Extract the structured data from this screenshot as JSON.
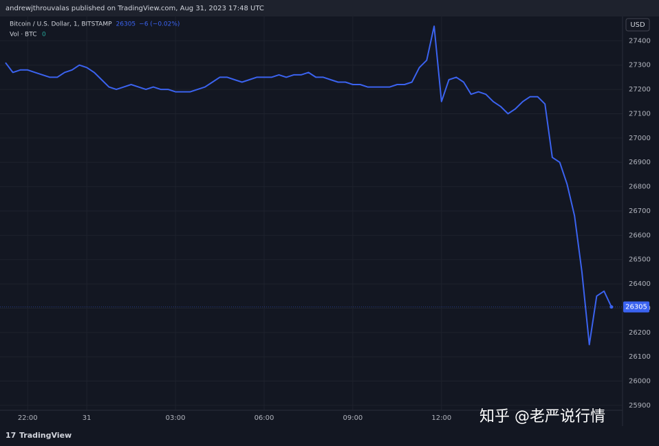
{
  "header": "andrewjthrouvalas published on TradingView.com, Aug 31, 2023 17:48 UTC",
  "footer": "TradingView",
  "watermark": "知乎 @老严说行情",
  "chart_data": {
    "type": "line",
    "currency": "USD",
    "last_price": "26305",
    "change": "−6 (−0.02%)",
    "volume_label": "Vol · BTC",
    "volume_value": "0",
    "series": [
      {
        "name": "Bitcoin / U.S. Dollar, 1, BITSTAMP",
        "color": "#3b63f0",
        "values": [
          27310,
          27270,
          27280,
          27280,
          27270,
          27260,
          27250,
          27250,
          27270,
          27280,
          27300,
          27290,
          27270,
          27240,
          27210,
          27200,
          27210,
          27220,
          27210,
          27200,
          27210,
          27200,
          27200,
          27190,
          27190,
          27190,
          27200,
          27210,
          27230,
          27250,
          27250,
          27240,
          27230,
          27240,
          27250,
          27250,
          27250,
          27260,
          27250,
          27260,
          27260,
          27270,
          27250,
          27250,
          27240,
          27230,
          27230,
          27220,
          27220,
          27210,
          27210,
          27210,
          27210,
          27220,
          27220,
          27230,
          27290,
          27320,
          27460,
          27150,
          27240,
          27250,
          27230,
          27180,
          27190,
          27180,
          27150,
          27130,
          27100,
          27120,
          27150,
          27170,
          27170,
          27140,
          26920,
          26900,
          26810,
          26680,
          26450,
          26150,
          26350,
          26370,
          26305
        ]
      }
    ],
    "xlim": [
      0,
      83.5
    ],
    "xticks": [
      {
        "value": 3,
        "label": "22:00"
      },
      {
        "value": 11,
        "label": "31"
      },
      {
        "value": 23,
        "label": "03:00"
      },
      {
        "value": 35,
        "label": "06:00"
      },
      {
        "value": 47,
        "label": "09:00"
      },
      {
        "value": 59,
        "label": "12:00"
      }
    ],
    "ylim": [
      25880,
      27500
    ],
    "yticks": [
      25900,
      26000,
      26100,
      26200,
      26300,
      26400,
      26500,
      26600,
      26700,
      26800,
      26900,
      27000,
      27100,
      27200,
      27300,
      27400
    ],
    "grid": true
  }
}
